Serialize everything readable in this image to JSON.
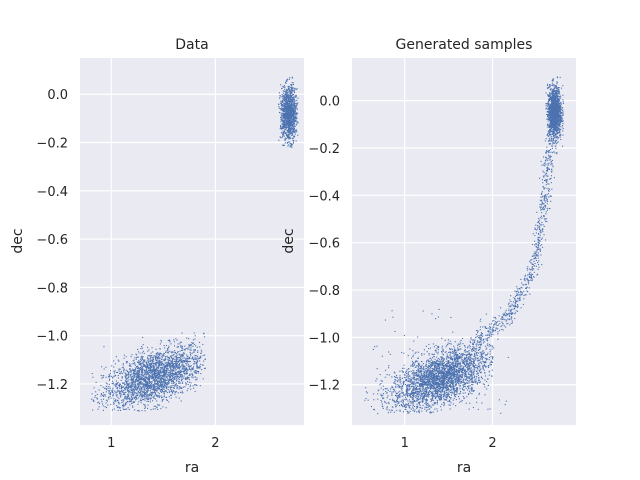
{
  "chart_data": [
    {
      "type": "scatter",
      "title": "Data",
      "xlabel": "ra",
      "ylabel": "dec",
      "xlim": [
        0.7,
        2.85
      ],
      "ylim": [
        -1.37,
        0.15
      ],
      "xticks": [
        1,
        2
      ],
      "xtick_labels": [
        "1",
        "2"
      ],
      "yticks": [
        0.0,
        -0.2,
        -0.4,
        -0.6,
        -0.8,
        -1.0,
        -1.2
      ],
      "ytick_labels": [
        "0.0",
        "−0.2",
        "−0.4",
        "−0.6",
        "−0.8",
        "−1.0",
        "−1.2"
      ],
      "grid": true,
      "color": "#4c72b0",
      "clusters": [
        {
          "center": [
            1.4,
            -1.17
          ],
          "x_range": [
            0.8,
            1.9
          ],
          "y_range": [
            -1.29,
            -1.0
          ],
          "shape": "tilted ellipse"
        },
        {
          "center": [
            2.7,
            -0.08
          ],
          "x_range": [
            2.6,
            2.79
          ],
          "y_range": [
            -0.22,
            0.09
          ],
          "shape": "vertical blob"
        }
      ]
    },
    {
      "type": "scatter",
      "title": "Generated samples",
      "xlabel": "ra",
      "ylabel": "dec",
      "xlim": [
        0.4,
        2.95
      ],
      "ylim": [
        -1.37,
        0.18
      ],
      "xticks": [
        1,
        2
      ],
      "xtick_labels": [
        "1",
        "2"
      ],
      "yticks": [
        0.0,
        -0.2,
        -0.4,
        -0.6,
        -0.8,
        -1.0,
        -1.2
      ],
      "ytick_labels": [
        "0.0",
        "−0.2",
        "−0.4",
        "−0.6",
        "−0.8",
        "−1.0",
        "−1.2"
      ],
      "grid": true,
      "color": "#4c72b0",
      "clusters": [
        {
          "center": [
            1.4,
            -1.17
          ],
          "x_range": [
            0.5,
            2.0
          ],
          "y_range": [
            -1.3,
            -0.98
          ],
          "shape": "tilted ellipse"
        },
        {
          "center": [
            2.7,
            -0.05
          ],
          "x_range": [
            2.6,
            2.8
          ],
          "y_range": [
            -0.25,
            0.12
          ],
          "shape": "vertical blob"
        }
      ],
      "bridge": [
        [
          1.8,
          -1.02
        ],
        [
          2.2,
          -0.9
        ],
        [
          2.45,
          -0.72
        ],
        [
          2.58,
          -0.45
        ],
        [
          2.65,
          -0.2
        ]
      ]
    }
  ]
}
